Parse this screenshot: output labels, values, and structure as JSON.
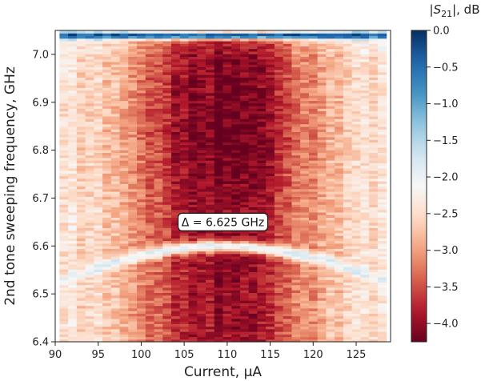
{
  "chart_data": {
    "type": "heatmap",
    "title": "",
    "xlabel": "Current, μA",
    "ylabel": "2nd tone sweeping frequency, GHz",
    "xlim": [
      90,
      129
    ],
    "ylim": [
      6.4,
      7.05
    ],
    "x_ticks": [
      90,
      95,
      100,
      105,
      110,
      115,
      120,
      125
    ],
    "x_tick_labels": [
      "90",
      "95",
      "100",
      "105",
      "110",
      "115",
      "120",
      "125"
    ],
    "y_ticks": [
      6.4,
      6.5,
      6.6,
      6.7,
      6.8,
      6.9,
      7.0
    ],
    "y_tick_labels": [
      "6.4",
      "6.5",
      "6.6",
      "6.7",
      "6.8",
      "6.9",
      "7.0"
    ],
    "x_columns": [
      91,
      92,
      93,
      94,
      95,
      96,
      97,
      98,
      99,
      100,
      101,
      102,
      103,
      104,
      105,
      106,
      107,
      108,
      109,
      110,
      111,
      112,
      113,
      114,
      115,
      116,
      117,
      118,
      119,
      120,
      121,
      122,
      123,
      124,
      125,
      126,
      127,
      128
    ],
    "colorbar": {
      "label_prefix": "|",
      "label_symbol": "S",
      "label_subscript": "21",
      "label_suffix": "|, dB",
      "range": [
        -4.25,
        0.0
      ],
      "ticks": [
        0.0,
        -0.5,
        -1.0,
        -1.5,
        -2.0,
        -2.5,
        -3.0,
        -3.5,
        -4.0
      ],
      "tick_labels": [
        "0.0",
        "−0.5",
        "−1.0",
        "−1.5",
        "−2.0",
        "−2.5",
        "−3.0",
        "−3.5",
        "−4.0"
      ],
      "colormap": "RdBu",
      "colors": [
        "#67001f",
        "#b2182b",
        "#d6604d",
        "#f4a582",
        "#fddbc7",
        "#f7f7f7",
        "#d1e5f0",
        "#92c5de",
        "#4393c3",
        "#2166ac",
        "#053061"
      ]
    },
    "features": {
      "top_band_ghz": 7.04,
      "top_band_db": -0.3,
      "arc_center_current": 109.5,
      "arc_peak_ghz": 6.6,
      "arc_low_end_ghz": 6.52,
      "arc_db": -1.9
    },
    "annotation": {
      "text": "Δ = 6.625 GHz",
      "x": 109.5,
      "y": 6.65
    }
  }
}
